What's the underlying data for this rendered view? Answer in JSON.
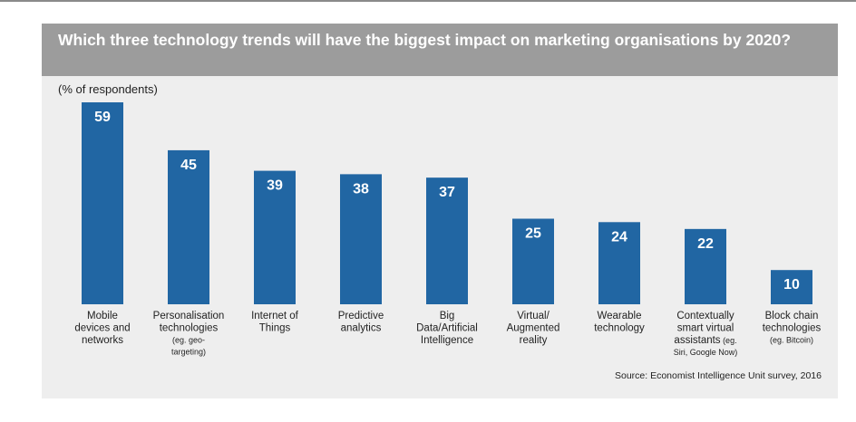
{
  "chart_data": {
    "type": "bar",
    "title": "Which three technology trends will have the biggest impact on marketing organisations by 2020?",
    "subtitle": "(% of respondents)",
    "categories": [
      {
        "label": [
          "Mobile",
          "devices and",
          "networks"
        ],
        "sub": []
      },
      {
        "label": [
          "Personalisation",
          "technologies"
        ],
        "sub": [
          "(eg. geo-",
          "targeting)"
        ]
      },
      {
        "label": [
          "Internet of",
          "Things"
        ],
        "sub": []
      },
      {
        "label": [
          "Predictive",
          "analytics"
        ],
        "sub": []
      },
      {
        "label": [
          "Big",
          "Data/Artificial",
          "Intelligence"
        ],
        "sub": []
      },
      {
        "label": [
          "Virtual/",
          "Augmented",
          "reality"
        ],
        "sub": []
      },
      {
        "label": [
          "Wearable",
          "technology"
        ],
        "sub": []
      },
      {
        "label": [
          "Contextually",
          "smart virtual",
          "assistants"
        ],
        "label_tail": " (eg.",
        "sub": [
          "Siri, Google Now)"
        ]
      },
      {
        "label": [
          "Block chain",
          "technologies"
        ],
        "sub": [
          "(eg. Bitcoin)"
        ]
      }
    ],
    "values": [
      59,
      45,
      39,
      38,
      37,
      25,
      24,
      22,
      10
    ],
    "ylim": [
      0,
      59
    ],
    "grid": false,
    "legend": "none",
    "bar_color": "#2166a3",
    "value_label_color": "#ffffff",
    "source": "Source: Economist Intelligence Unit survey, 2016"
  }
}
